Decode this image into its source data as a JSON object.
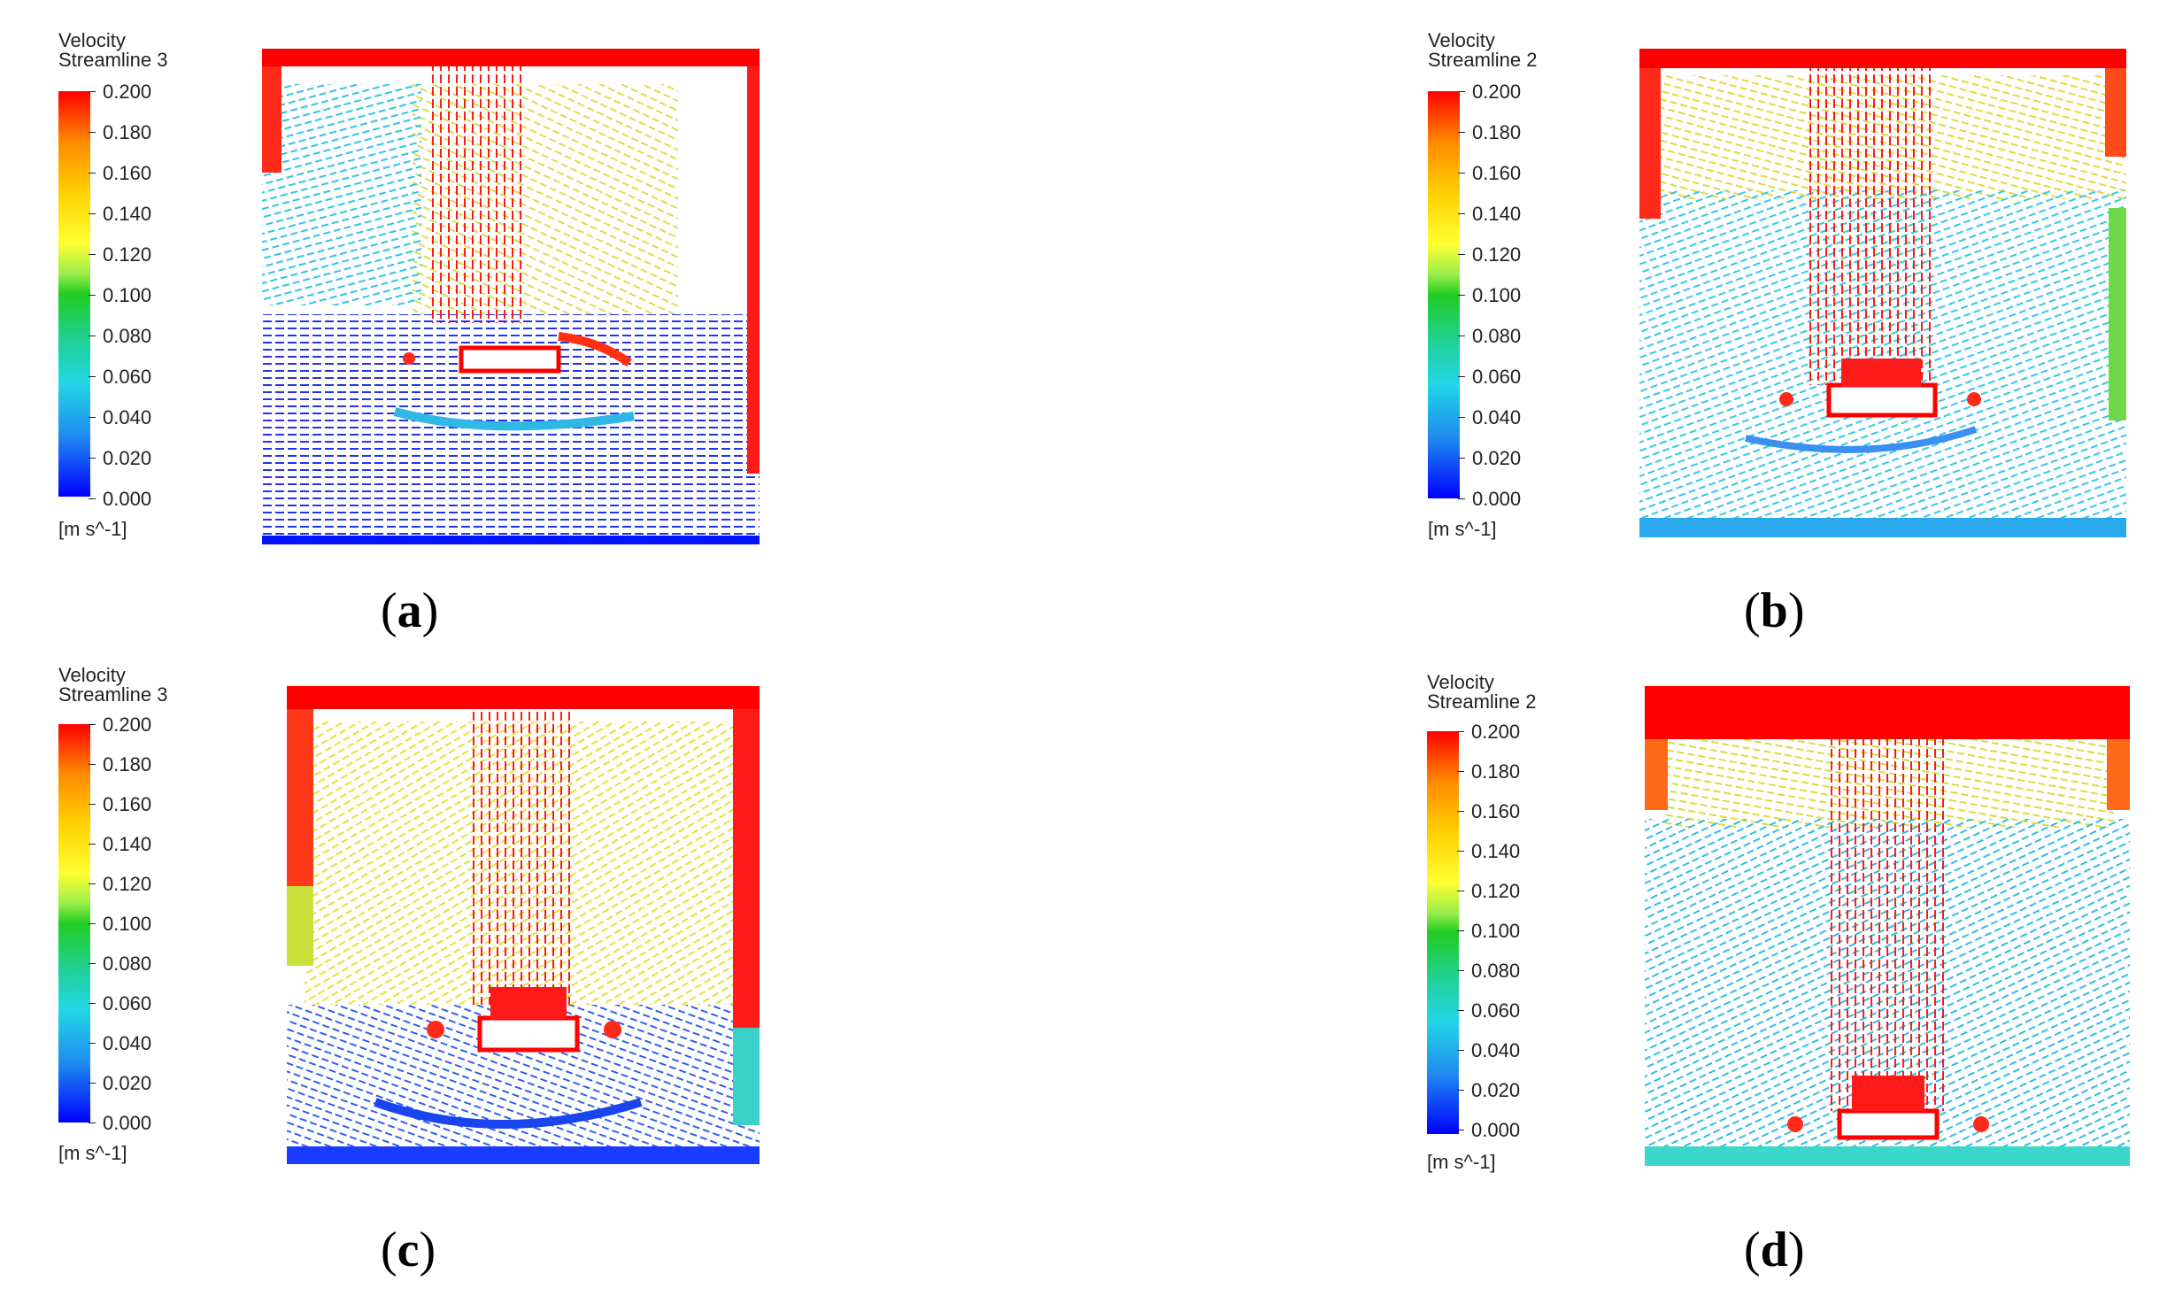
{
  "colors": {
    "red": "#ff0000",
    "orange": "#ff8a00",
    "yellow": "#f4e43a",
    "green": "#22cc22",
    "cyan": "#22d6e6",
    "blue": "#0000ff"
  },
  "panels": [
    {
      "id": "a",
      "legend": {
        "title": "Velocity",
        "subtitle": "Streamline 3",
        "ticks": [
          "0.200",
          "0.180",
          "0.160",
          "0.140",
          "0.120",
          "0.100",
          "0.080",
          "0.060",
          "0.040",
          "0.020",
          "0.000"
        ],
        "unit": "[m s^-1]"
      },
      "caption": {
        "open": "(",
        "letter": "a",
        "close": ")"
      }
    },
    {
      "id": "b",
      "legend": {
        "title": "Velocity",
        "subtitle": "Streamline 2",
        "ticks": [
          "0.200",
          "0.180",
          "0.160",
          "0.140",
          "0.120",
          "0.100",
          "0.080",
          "0.060",
          "0.040",
          "0.020",
          "0.000"
        ],
        "unit": "[m s^-1]"
      },
      "caption": {
        "open": "(",
        "letter": "b",
        "close": ")"
      }
    },
    {
      "id": "c",
      "legend": {
        "title": "Velocity",
        "subtitle": "Streamline 3",
        "ticks": [
          "0.200",
          "0.180",
          "0.160",
          "0.140",
          "0.120",
          "0.100",
          "0.080",
          "0.060",
          "0.040",
          "0.020",
          "0.000"
        ],
        "unit": "[m s^-1]"
      },
      "caption": {
        "open": "(",
        "letter": "c",
        "close": ")"
      }
    },
    {
      "id": "d",
      "legend": {
        "title": "Velocity",
        "subtitle": "Streamline 2",
        "ticks": [
          "0.200",
          "0.180",
          "0.160",
          "0.140",
          "0.120",
          "0.100",
          "0.080",
          "0.060",
          "0.040",
          "0.020",
          "0.000"
        ],
        "unit": "[m s^-1]"
      },
      "caption": {
        "open": "(",
        "letter": "d",
        "close": ")"
      }
    }
  ]
}
